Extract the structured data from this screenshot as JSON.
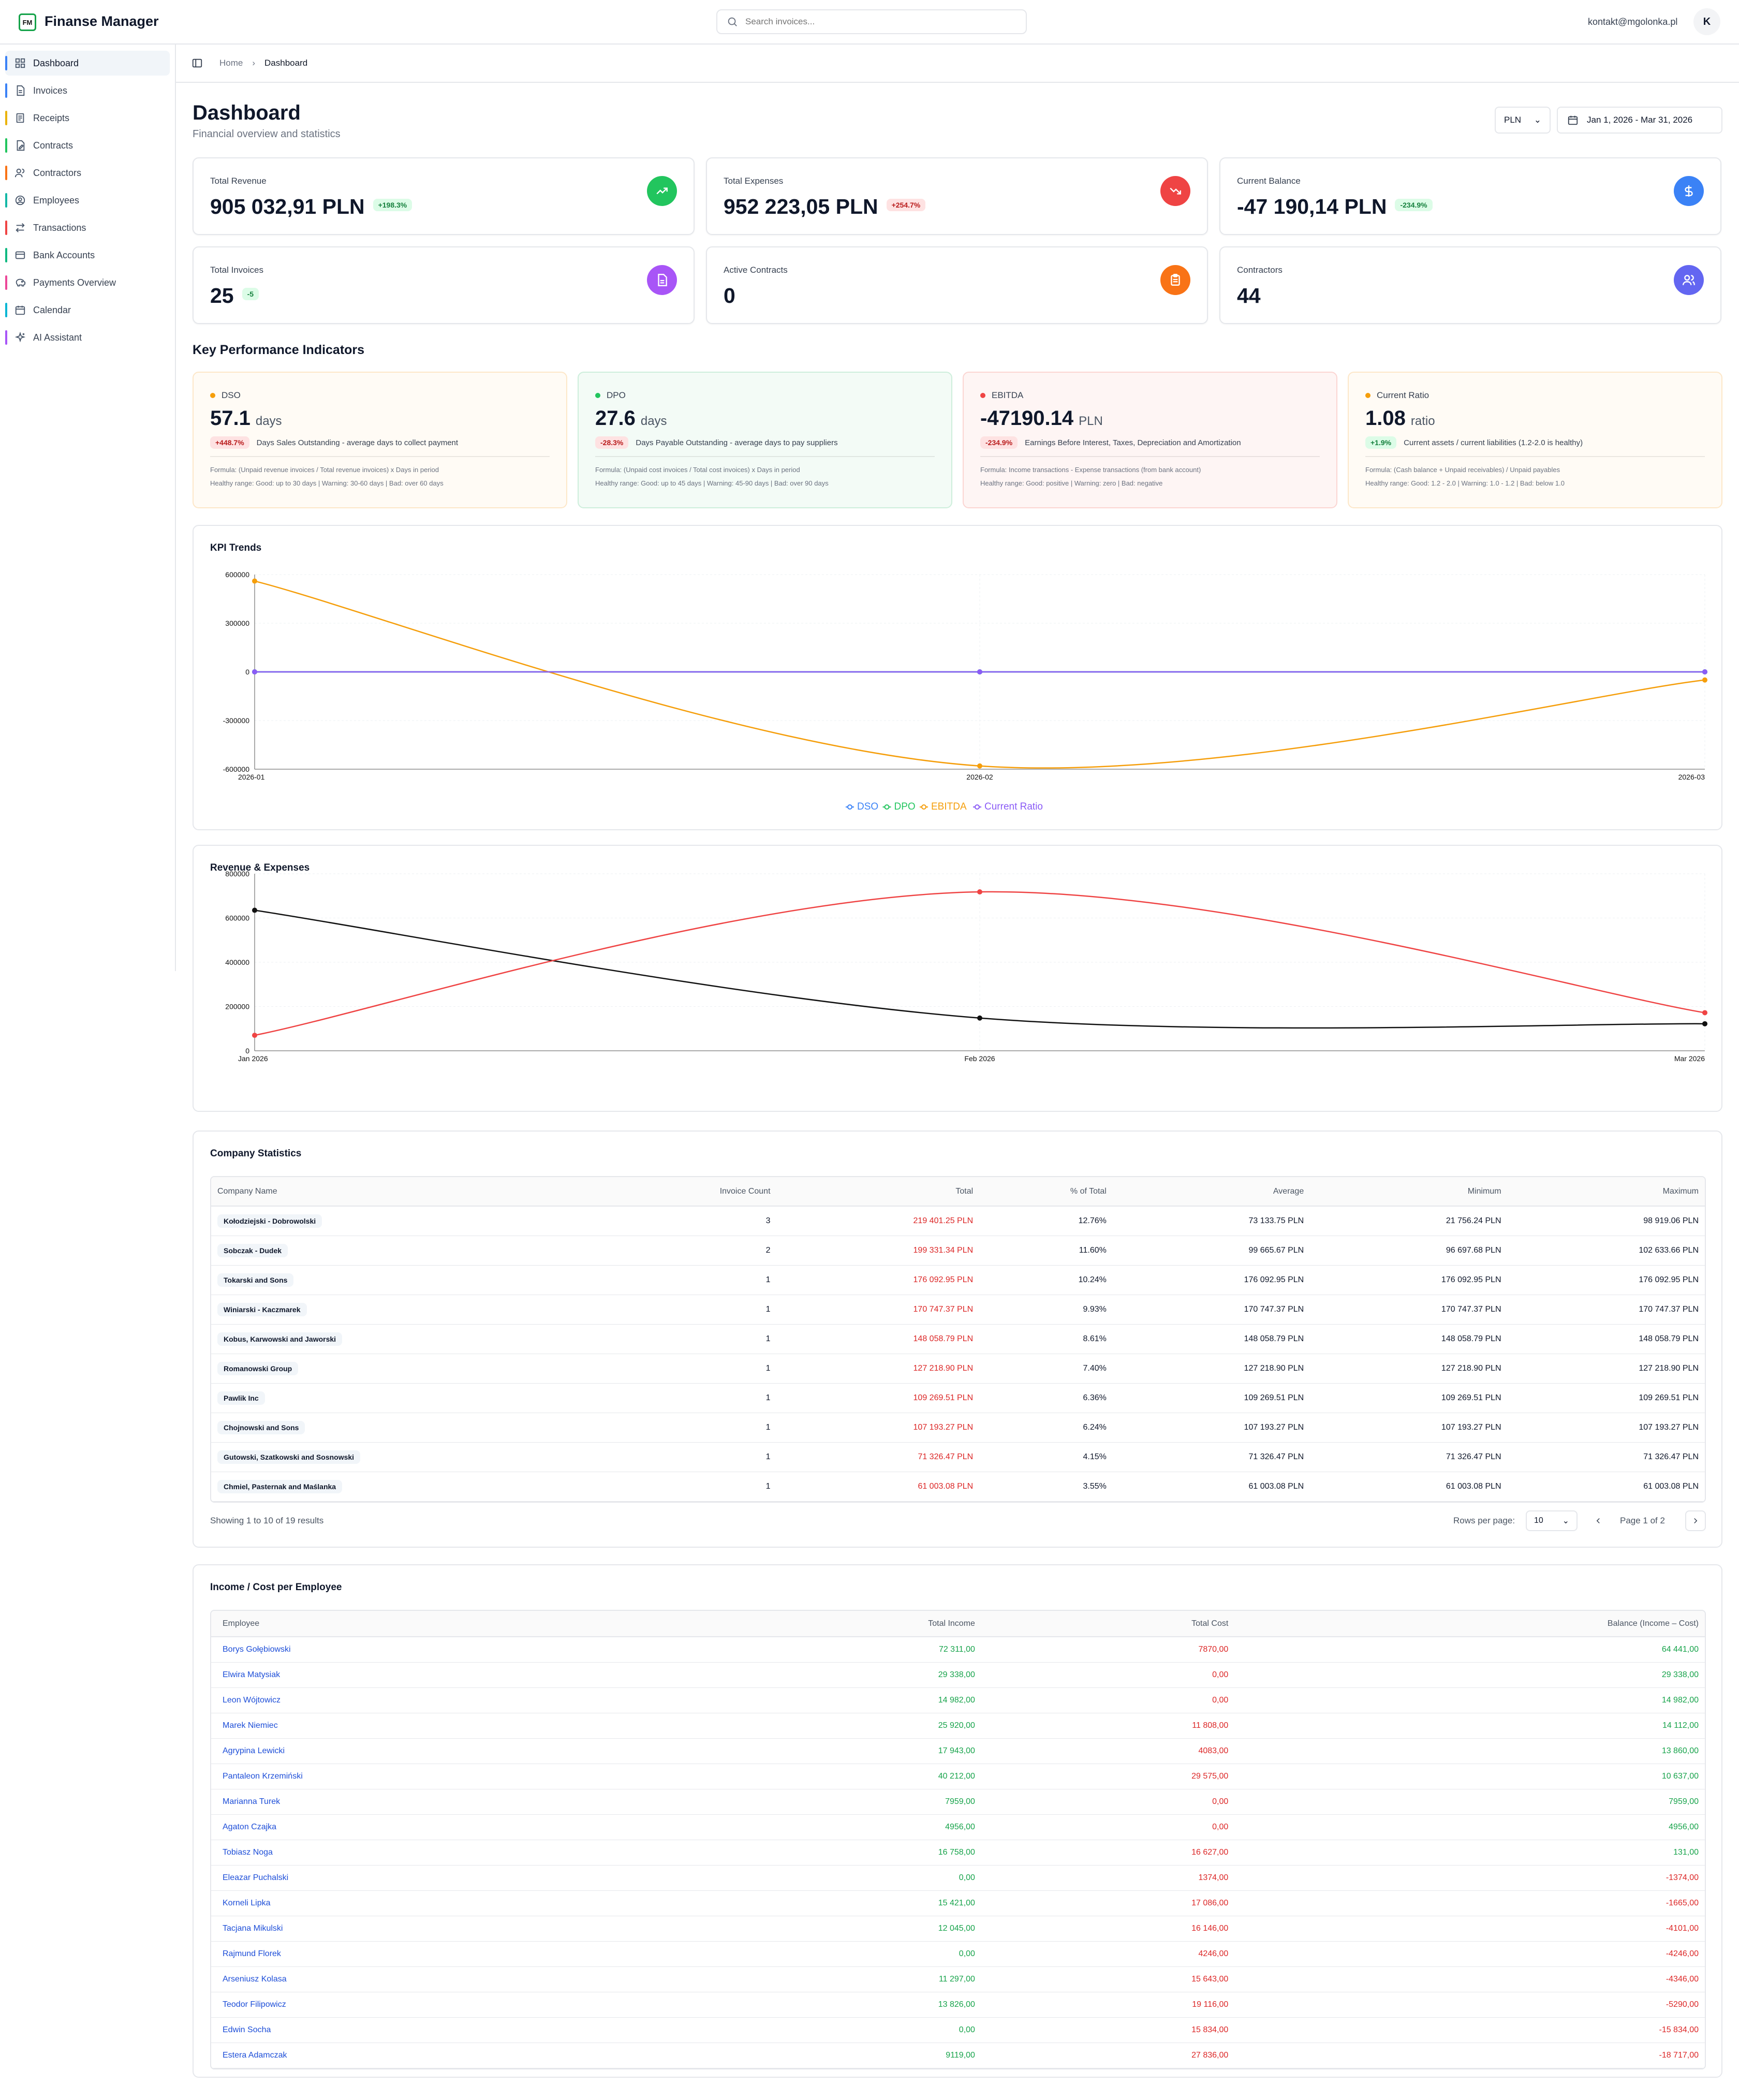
{
  "app": {
    "logo_text": "FM",
    "title": "Finanse Manager",
    "user_email": "kontakt@mgolonka.pl",
    "avatar_initial": "K"
  },
  "search": {
    "placeholder": "Search invoices..."
  },
  "sidebar": {
    "items": [
      {
        "label": "Dashboard",
        "icon": "dashboard-icon",
        "color": "#3b82f6"
      },
      {
        "label": "Invoices",
        "icon": "file-icon",
        "color": "#3b82f6"
      },
      {
        "label": "Receipts",
        "icon": "receipt-icon",
        "color": "#eab308"
      },
      {
        "label": "Contracts",
        "icon": "contract-icon",
        "color": "#22c55e"
      },
      {
        "label": "Contractors",
        "icon": "users-icon",
        "color": "#f97316"
      },
      {
        "label": "Employees",
        "icon": "user-circle-icon",
        "color": "#14b8a6"
      },
      {
        "label": "Transactions",
        "icon": "transfer-icon",
        "color": "#ef4444"
      },
      {
        "label": "Bank Accounts",
        "icon": "bank-icon",
        "color": "#10b981"
      },
      {
        "label": "Payments Overview",
        "icon": "piggy-bank-icon",
        "color": "#ec4899"
      },
      {
        "label": "Calendar",
        "icon": "calendar-icon",
        "color": "#06b6d4"
      },
      {
        "label": "AI Assistant",
        "icon": "sparkles-icon",
        "color": "#a855f7"
      }
    ]
  },
  "breadcrumb": {
    "home": "Home",
    "current": "Dashboard"
  },
  "header": {
    "title": "Dashboard",
    "subtitle": "Financial overview and statistics",
    "currency": "PLN",
    "date_range": "Jan 1, 2026 - Mar 31, 2026"
  },
  "stats": [
    {
      "label": "Total Revenue",
      "value": "905 032,91 PLN",
      "badge": "+198.3%",
      "badge_type": "green",
      "icon": "trending-up-icon",
      "icon_color": "#22c55e"
    },
    {
      "label": "Total Expenses",
      "value": "952 223,05 PLN",
      "badge": "+254.7%",
      "badge_type": "red",
      "icon": "trending-down-icon",
      "icon_color": "#ef4444"
    },
    {
      "label": "Current Balance",
      "value": "-47 190,14 PLN",
      "badge": "-234.9%",
      "badge_type": "green",
      "icon": "dollar-icon",
      "icon_color": "#3b82f6"
    },
    {
      "label": "Total Invoices",
      "value": "25",
      "badge": "-5",
      "badge_type": "green",
      "icon": "document-icon",
      "icon_color": "#a855f7"
    },
    {
      "label": "Active Contracts",
      "value": "0",
      "badge": "",
      "badge_type": "",
      "icon": "clipboard-icon",
      "icon_color": "#f97316"
    },
    {
      "label": "Contractors",
      "value": "44",
      "badge": "",
      "badge_type": "",
      "icon": "people-icon",
      "icon_color": "#6366f1"
    }
  ],
  "kpi": {
    "title": "Key Performance Indicators",
    "cards": [
      {
        "name": "DSO",
        "value": "57.1",
        "unit": "days",
        "badge": "+448.7%",
        "badge_type": "red",
        "desc": "Days Sales Outstanding - average days to collect payment",
        "formula": "Formula: (Unpaid revenue invoices / Total revenue invoices) x Days in period",
        "range": "Healthy range: Good: up to 30 days | Warning: 30-60 days | Bad: over 60 days",
        "dot": "#f59e0b",
        "bg": "#fffbf5",
        "border": "#fde7c8"
      },
      {
        "name": "DPO",
        "value": "27.6",
        "unit": "days",
        "badge": "-28.3%",
        "badge_type": "red",
        "desc": "Days Payable Outstanding - average days to pay suppliers",
        "formula": "Formula: (Unpaid cost invoices / Total cost invoices) x Days in period",
        "range": "Healthy range: Good: up to 45 days | Warning: 45-90 days | Bad: over 90 days",
        "dot": "#22c55e",
        "bg": "#f3fbf6",
        "border": "#cdeedb"
      },
      {
        "name": "EBITDA",
        "value": "-47190.14",
        "unit": "PLN",
        "badge": "-234.9%",
        "badge_type": "red",
        "desc": "Earnings Before Interest, Taxes, Depreciation and Amortization",
        "formula": "Formula: Income transactions - Expense transactions (from bank account)",
        "range": "Healthy range: Good: positive | Warning: zero | Bad: negative",
        "dot": "#ef4444",
        "bg": "#fef5f4",
        "border": "#fbd5d2"
      },
      {
        "name": "Current Ratio",
        "value": "1.08",
        "unit": "ratio",
        "badge": "+1.9%",
        "badge_type": "green",
        "desc": "Current assets / current liabilities (1.2-2.0 is healthy)",
        "formula": "Formula: (Cash balance + Unpaid receivables) / Unpaid payables",
        "range": "Healthy range: Good: 1.2 - 2.0 | Warning: 1.0 - 1.2 | Bad: below 1.0",
        "dot": "#f59e0b",
        "bg": "#fffbf5",
        "border": "#fde7c8"
      }
    ]
  },
  "chart_data": [
    {
      "type": "line",
      "title": "KPI Trends",
      "x": [
        "2026-01",
        "2026-02",
        "2026-03"
      ],
      "ylim": [
        -600000,
        600000
      ],
      "yticks": [
        "600000",
        "300000",
        "0",
        "-300000",
        "-600000"
      ],
      "series": [
        {
          "name": "DSO",
          "color": "#3b82f6",
          "values": [
            0,
            0,
            0
          ]
        },
        {
          "name": "DPO",
          "color": "#22c55e",
          "values": [
            0,
            0,
            0
          ]
        },
        {
          "name": "EBITDA",
          "color": "#f59e0b",
          "values": [
            560000,
            -580000,
            -50000
          ]
        },
        {
          "name": "Current Ratio",
          "color": "#8b5cf6",
          "values": [
            0,
            0,
            0
          ]
        }
      ],
      "legend": "bottom"
    },
    {
      "type": "line",
      "title": "Revenue & Expenses",
      "x": [
        "Jan 2026",
        "Feb 2026",
        "Mar 2026"
      ],
      "ylim": [
        0,
        800000
      ],
      "yticks": [
        "800000",
        "600000",
        "400000",
        "200000",
        "0"
      ],
      "series": [
        {
          "color": "#111111",
          "values": [
            635000,
            148000,
            122000
          ]
        },
        {
          "color": "#ef4444",
          "values": [
            70000,
            718000,
            172000
          ]
        }
      ],
      "legend": "none"
    }
  ],
  "company_stats": {
    "title": "Company Statistics",
    "columns": [
      "Company Name",
      "Invoice Count",
      "Total",
      "% of Total",
      "Average",
      "Minimum",
      "Maximum"
    ],
    "rows": [
      [
        "Kołodziejski - Dobrowolski",
        "3",
        "219 401.25 PLN",
        "12.76%",
        "73 133.75 PLN",
        "21 756.24 PLN",
        "98 919.06 PLN"
      ],
      [
        "Sobczak - Dudek",
        "2",
        "199 331.34 PLN",
        "11.60%",
        "99 665.67 PLN",
        "96 697.68 PLN",
        "102 633.66 PLN"
      ],
      [
        "Tokarski and Sons",
        "1",
        "176 092.95 PLN",
        "10.24%",
        "176 092.95 PLN",
        "176 092.95 PLN",
        "176 092.95 PLN"
      ],
      [
        "Winiarski - Kaczmarek",
        "1",
        "170 747.37 PLN",
        "9.93%",
        "170 747.37 PLN",
        "170 747.37 PLN",
        "170 747.37 PLN"
      ],
      [
        "Kobus, Karwowski and Jaworski",
        "1",
        "148 058.79 PLN",
        "8.61%",
        "148 058.79 PLN",
        "148 058.79 PLN",
        "148 058.79 PLN"
      ],
      [
        "Romanowski Group",
        "1",
        "127 218.90 PLN",
        "7.40%",
        "127 218.90 PLN",
        "127 218.90 PLN",
        "127 218.90 PLN"
      ],
      [
        "Pawlik Inc",
        "1",
        "109 269.51 PLN",
        "6.36%",
        "109 269.51 PLN",
        "109 269.51 PLN",
        "109 269.51 PLN"
      ],
      [
        "Chojnowski and Sons",
        "1",
        "107 193.27 PLN",
        "6.24%",
        "107 193.27 PLN",
        "107 193.27 PLN",
        "107 193.27 PLN"
      ],
      [
        "Gutowski, Szatkowski and Sosnowski",
        "1",
        "71 326.47 PLN",
        "4.15%",
        "71 326.47 PLN",
        "71 326.47 PLN",
        "71 326.47 PLN"
      ],
      [
        "Chmiel, Pasternak and Maślanka",
        "1",
        "61 003.08 PLN",
        "3.55%",
        "61 003.08 PLN",
        "61 003.08 PLN",
        "61 003.08 PLN"
      ]
    ],
    "showing": "Showing 1 to 10 of 19 results",
    "rows_per_page_label": "Rows per page:",
    "rows_per_page": "10",
    "page_info": "Page 1 of 2"
  },
  "employees": {
    "title": "Income / Cost per Employee",
    "columns": [
      "Employee",
      "Total Income",
      "Total Cost",
      "Balance (Income – Cost)"
    ],
    "rows": [
      [
        "Borys Gołębiowski",
        "72 311,00",
        "7870,00",
        "64 441,00",
        "pos"
      ],
      [
        "Elwira Matysiak",
        "29 338,00",
        "0,00",
        "29 338,00",
        "pos"
      ],
      [
        "Leon Wójtowicz",
        "14 982,00",
        "0,00",
        "14 982,00",
        "pos"
      ],
      [
        "Marek Niemiec",
        "25 920,00",
        "11 808,00",
        "14 112,00",
        "pos"
      ],
      [
        "Agrypina Lewicki",
        "17 943,00",
        "4083,00",
        "13 860,00",
        "pos"
      ],
      [
        "Pantaleon Krzemiński",
        "40 212,00",
        "29 575,00",
        "10 637,00",
        "pos"
      ],
      [
        "Marianna Turek",
        "7959,00",
        "0,00",
        "7959,00",
        "pos"
      ],
      [
        "Agaton Czajka",
        "4956,00",
        "0,00",
        "4956,00",
        "pos"
      ],
      [
        "Tobiasz Noga",
        "16 758,00",
        "16 627,00",
        "131,00",
        "pos"
      ],
      [
        "Eleazar Puchalski",
        "0,00",
        "1374,00",
        "-1374,00",
        "neg"
      ],
      [
        "Korneli Lipka",
        "15 421,00",
        "17 086,00",
        "-1665,00",
        "neg"
      ],
      [
        "Tacjana Mikulski",
        "12 045,00",
        "16 146,00",
        "-4101,00",
        "neg"
      ],
      [
        "Rajmund Florek",
        "0,00",
        "4246,00",
        "-4246,00",
        "neg"
      ],
      [
        "Arseniusz Kolasa",
        "11 297,00",
        "15 643,00",
        "-4346,00",
        "neg"
      ],
      [
        "Teodor Filipowicz",
        "13 826,00",
        "19 116,00",
        "-5290,00",
        "neg"
      ],
      [
        "Edwin Socha",
        "0,00",
        "15 834,00",
        "-15 834,00",
        "neg"
      ],
      [
        "Estera Adamczak",
        "9119,00",
        "27 836,00",
        "-18 717,00",
        "neg"
      ]
    ]
  }
}
